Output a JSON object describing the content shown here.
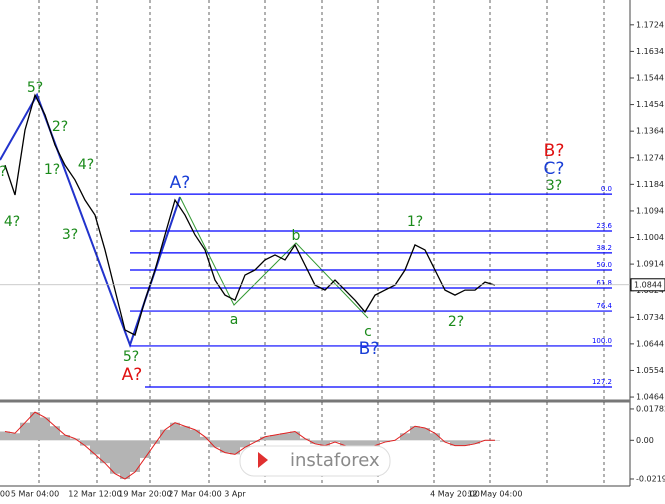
{
  "chart_data": [
    {
      "type": "line",
      "color": "#000000",
      "categories": [
        "00",
        null,
        null,
        "5 Mar 04:00",
        null,
        null,
        null,
        null,
        null,
        "12 Mar 12:00",
        null,
        null,
        null,
        null,
        "19 Mar 20:00",
        null,
        null,
        null,
        null,
        "27 Mar 04:00",
        null,
        null,
        null,
        "3 Apr",
        null,
        null,
        null,
        null,
        null,
        null,
        null,
        null,
        null,
        null,
        null,
        null,
        null,
        null,
        null,
        null,
        null,
        null,
        null,
        null,
        null,
        "4 May 20:00",
        null,
        null,
        null,
        "12 May 04:00"
      ],
      "values": [
        1.1249,
        1.1148,
        1.1368,
        1.1486,
        1.1419,
        1.1317,
        1.1249,
        1.1199,
        1.1131,
        1.108,
        1.0962,
        1.0826,
        1.0691,
        1.0674,
        1.0792,
        1.0894,
        1.1013,
        1.1131,
        1.108,
        1.1013,
        1.0962,
        1.086,
        1.0809,
        1.0792,
        1.0877,
        1.0894,
        1.0928,
        1.0945,
        1.0928,
        1.0979,
        1.0911,
        1.0843,
        1.0826,
        1.086,
        1.0826,
        1.0792,
        1.0752,
        1.0809,
        1.0826,
        1.0843,
        1.0894,
        1.0979,
        1.0962,
        1.0894,
        1.0826,
        1.0809,
        1.0826,
        1.0826,
        1.0853,
        1.0843
      ],
      "ylim": [
        1.0454,
        1.1808
      ],
      "yticks": [
        1.0464,
        1.0554,
        1.0644,
        1.0734,
        1.0824,
        1.0914,
        1.1004,
        1.1094,
        1.1184,
        1.1274,
        1.1364,
        1.1454,
        1.1544,
        1.1634,
        1.1724
      ],
      "last_value": 1.0844,
      "fib_color": "#0000ff",
      "fib_levels": [
        {
          "value": 1.1151,
          "label": "0.0"
        },
        {
          "value": 1.1026,
          "label": "23.6"
        },
        {
          "value": 1.0952,
          "label": "38.2"
        },
        {
          "value": 1.0894,
          "label": "50.0"
        },
        {
          "value": 1.0833,
          "label": "61.8"
        },
        {
          "value": 1.0755,
          "label": "76.4"
        },
        {
          "value": 1.0637,
          "label": "100.0"
        },
        {
          "value": 1.0498,
          "label": "127.2"
        }
      ],
      "annotations": [
        {
          "text": "5?",
          "color": "#1a8a1a"
        },
        {
          "text": "2?",
          "color": "#1a8a1a"
        },
        {
          "text": "1?",
          "color": "#1a8a1a"
        },
        {
          "text": "4?",
          "color": "#1a8a1a"
        },
        {
          "text": "3?",
          "color": "#1a8a1a"
        },
        {
          "text": "?",
          "color": "#1a8a1a"
        },
        {
          "text": "4?",
          "color": "#1a8a1a"
        },
        {
          "text": "5?",
          "color": "#1a8a1a"
        },
        {
          "text": "A?",
          "color": "#e01010"
        },
        {
          "text": "A?",
          "color": "#1a3fd6"
        },
        {
          "text": "a",
          "color": "#1a8a1a"
        },
        {
          "text": "b",
          "color": "#1a8a1a"
        },
        {
          "text": "c",
          "color": "#1a8a1a"
        },
        {
          "text": "B?",
          "color": "#1a3fd6"
        },
        {
          "text": "1?",
          "color": "#1a8a1a"
        },
        {
          "text": "2?",
          "color": "#1a8a1a"
        },
        {
          "text": "B?",
          "color": "#e01010"
        },
        {
          "text": "C?",
          "color": "#1a3fd6"
        },
        {
          "text": "3?",
          "color": "#1a8a1a"
        }
      ]
    },
    {
      "type": "bar",
      "color": "#b4b4b4",
      "line_color": "#e02020",
      "values": [
        0.005,
        0.004,
        0.01,
        0.016,
        0.013,
        0.008,
        0.003,
        0.001,
        -0.003,
        -0.008,
        -0.013,
        -0.019,
        -0.022,
        -0.018,
        -0.01,
        -0.002,
        0.006,
        0.01,
        0.008,
        0.006,
        0.002,
        -0.004,
        -0.007,
        -0.008,
        -0.004,
        -0.001,
        0.002,
        0.003,
        0.004,
        0.005,
        0.001,
        -0.002,
        -0.003,
        -0.001,
        -0.003,
        -0.005,
        -0.006,
        -0.003,
        -0.001,
        0.0,
        0.004,
        0.008,
        0.007,
        0.004,
        -0.001,
        -0.003,
        -0.003,
        -0.002,
        0.0,
        0.0
      ],
      "ylim": [
        -0.0254,
        0.0212
      ],
      "yticks": [
        -0.02198,
        {
          "value": 0,
          "label": "0.00"
        },
        0.01782
      ]
    }
  ],
  "watermark": "instaforex"
}
